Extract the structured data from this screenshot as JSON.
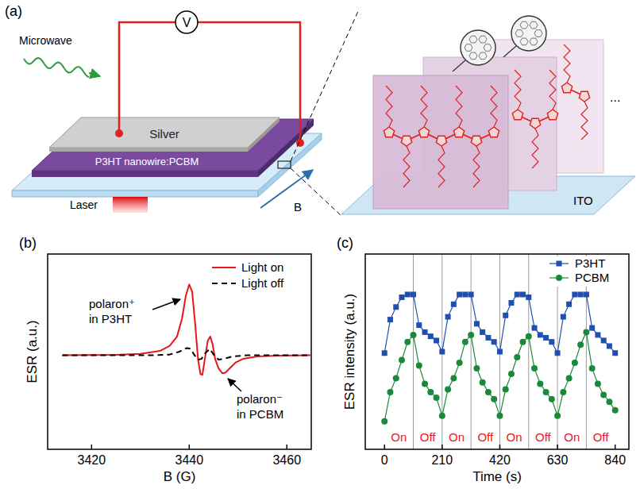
{
  "panels": [
    "(a)",
    "(b)",
    "(c)"
  ],
  "diagram": {
    "labels": {
      "microwave": "Microwave",
      "silver": "Silver",
      "voltmeter": "V",
      "active_layer": "P3HT nanowire:PCBM",
      "laser": "Laser",
      "field": "B",
      "zoom_substrate": "ITO",
      "more": "..."
    }
  },
  "chart_data": [
    {
      "type": "line",
      "xlabel": "B (G)",
      "ylabel": "ESR (a.u.)",
      "xlim": [
        3411,
        3465
      ],
      "xticks": [
        3420,
        3440,
        3460
      ],
      "ylim": [
        -13,
        14
      ],
      "tick_labels": "x",
      "legend": "upper right",
      "series": [
        {
          "name": "Light on",
          "color": "#e8161b",
          "line_style": "solid",
          "x": [
            3414,
            3425,
            3430,
            3434,
            3436,
            3437.5,
            3438.5,
            3439.3,
            3440,
            3440.6,
            3441.2,
            3441.8,
            3442.3,
            3442.7,
            3443.2,
            3443.8,
            3444.3,
            3444.8,
            3445.3,
            3446,
            3446.8,
            3447.4,
            3448.3,
            3449.5,
            3451,
            3454,
            3458,
            3465
          ],
          "values": [
            0,
            0.05,
            0.2,
            0.6,
            1.3,
            2.6,
            5,
            8.2,
            9.8,
            8.8,
            4.5,
            -0.5,
            -2.6,
            -2.7,
            -0.5,
            2,
            2.6,
            1.5,
            -0.5,
            -1.8,
            -2.5,
            -2.4,
            -1.8,
            -1.0,
            -0.5,
            -0.15,
            -0.05,
            0
          ]
        },
        {
          "name": "Light off",
          "color": "#000000",
          "line_style": "dashed",
          "x": [
            3414,
            3432,
            3436,
            3438,
            3439.5,
            3440.3,
            3441,
            3441.8,
            3442.5,
            3443.3,
            3444.2,
            3445,
            3446,
            3447,
            3449,
            3452,
            3465
          ],
          "values": [
            0,
            0,
            0.1,
            0.5,
            1.0,
            0.9,
            0.1,
            -0.6,
            -0.5,
            0.3,
            0.9,
            0.1,
            -0.6,
            -0.5,
            -0.15,
            0,
            0
          ]
        }
      ],
      "annotations": [
        "polaron⁺ in P3HT",
        "polaron⁻ in PCBM"
      ]
    },
    {
      "type": "line",
      "xlabel": "Time (s)",
      "ylabel": "ESR intensity (a.u.)",
      "xlim": [
        -70,
        890
      ],
      "xticks": [
        0,
        210,
        420,
        630,
        840
      ],
      "ylim": [
        -1.5,
        12.5
      ],
      "tick_labels": "x",
      "legend": "upper right",
      "x": [
        0,
        21,
        42,
        63,
        84,
        105,
        126,
        147,
        168,
        189,
        210,
        231,
        252,
        273,
        294,
        315,
        336,
        357,
        378,
        399,
        420,
        441,
        462,
        483,
        504,
        525,
        546,
        567,
        588,
        609,
        630,
        651,
        672,
        693,
        714,
        735,
        756,
        777,
        798,
        819,
        840
      ],
      "series": [
        {
          "name": "P3HT",
          "color": "#1f4fb0",
          "marker": "square",
          "values": [
            5.4,
            7.8,
            8.7,
            9.4,
            9.6,
            9.6,
            7.4,
            6.9,
            6.6,
            6.3,
            5.5,
            8.0,
            8.9,
            9.6,
            9.6,
            9.6,
            7.5,
            6.9,
            6.5,
            6.2,
            5.5,
            8.1,
            9.0,
            9.6,
            9.6,
            9.4,
            7.2,
            6.7,
            6.5,
            6.2,
            5.4,
            8.0,
            8.9,
            9.6,
            9.6,
            9.6,
            7.2,
            6.7,
            6.3,
            5.9,
            5.4
          ]
        },
        {
          "name": "PCBM",
          "color": "#1a8a3a",
          "marker": "circle",
          "values": [
            0.5,
            2.6,
            3.6,
            4.9,
            6.2,
            6.7,
            4.5,
            3.2,
            2.6,
            2.2,
            0.9,
            2.8,
            3.6,
            4.7,
            6.2,
            6.7,
            4.3,
            3.3,
            2.6,
            2.1,
            0.9,
            2.8,
            3.9,
            5.1,
            6.2,
            6.6,
            4.3,
            3.2,
            2.6,
            2.1,
            0.9,
            2.6,
            3.6,
            4.7,
            6.0,
            6.9,
            4.3,
            3.2,
            2.4,
            1.9,
            1.3
          ]
        }
      ],
      "phases": [
        {
          "label": "On",
          "start": 0,
          "end": 105
        },
        {
          "label": "Off",
          "start": 105,
          "end": 210
        },
        {
          "label": "On",
          "start": 210,
          "end": 315
        },
        {
          "label": "Off",
          "start": 315,
          "end": 420
        },
        {
          "label": "On",
          "start": 420,
          "end": 525
        },
        {
          "label": "Off",
          "start": 525,
          "end": 630
        },
        {
          "label": "On",
          "start": 630,
          "end": 735
        },
        {
          "label": "Off",
          "start": 735,
          "end": 840
        }
      ]
    }
  ]
}
